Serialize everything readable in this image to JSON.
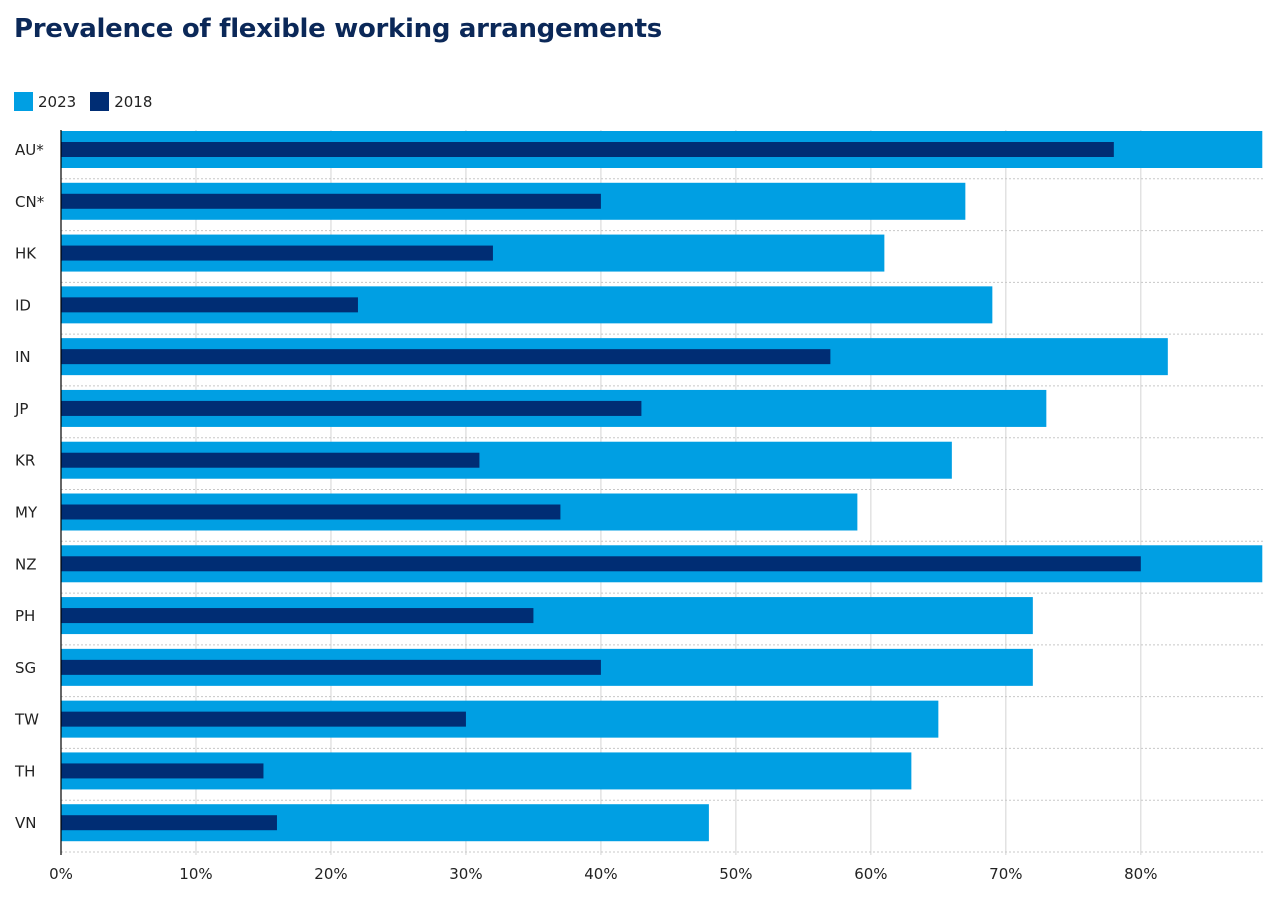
{
  "chart_data": {
    "type": "bar",
    "orientation": "horizontal",
    "title": "Prevalence of flexible working arrangements",
    "xlabel": "",
    "ylabel": "",
    "categories": [
      "AU*",
      "CN*",
      "HK",
      "ID",
      "IN",
      "JP",
      "KR",
      "MY",
      "NZ",
      "PH",
      "SG",
      "TW",
      "TH",
      "VN"
    ],
    "series": [
      {
        "name": "2023",
        "color": "#009FE3",
        "values": [
          89,
          67,
          61,
          69,
          82,
          73,
          66,
          59,
          89,
          72,
          72,
          65,
          63,
          48
        ]
      },
      {
        "name": "2018",
        "color": "#002D74",
        "values": [
          78,
          40,
          32,
          22,
          57,
          43,
          31,
          37,
          80,
          35,
          40,
          30,
          15,
          16
        ]
      }
    ],
    "xlim": [
      0,
      89.2
    ],
    "xticks": [
      "0%",
      "10%",
      "20%",
      "30%",
      "40%",
      "50%",
      "60%",
      "70%",
      "80%"
    ],
    "grid": true,
    "legend_position": "top-left"
  }
}
